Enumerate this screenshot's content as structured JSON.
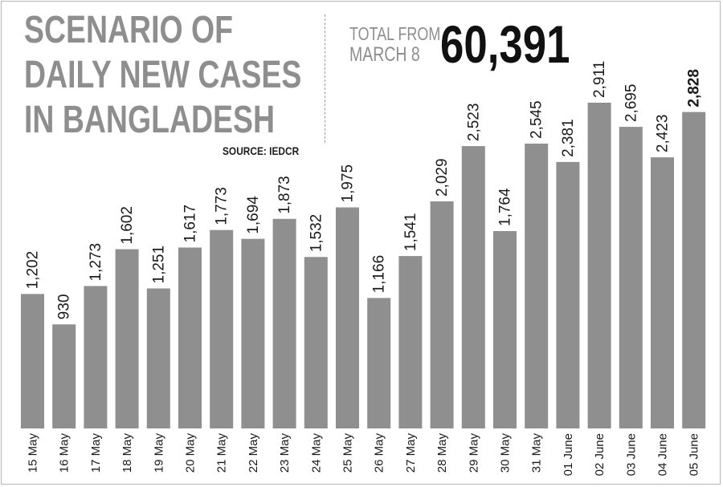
{
  "header": {
    "title_lines": [
      "SCENARIO OF",
      "DAILY NEW CASES",
      "IN BANGLADESH"
    ],
    "source": "SOURCE: IEDCR",
    "total_label_lines": [
      "TOTAL FROM",
      "MARCH 8"
    ],
    "total_value": "60,391"
  },
  "colors": {
    "bar": "#8f8f8f",
    "title": "#8e8e8e",
    "text": "#1a1a1a"
  },
  "chart_data": {
    "type": "bar",
    "title": "SCENARIO OF DAILY NEW CASES IN BANGLADESH",
    "categories": [
      "15 May",
      "16 May",
      "17 May",
      "18 May",
      "19 May",
      "20 May",
      "21 May",
      "22 May",
      "23 May",
      "24 May",
      "25 May",
      "26 May",
      "27 May",
      "28 May",
      "29 May",
      "30 May",
      "31 May",
      "01 June",
      "02 June",
      "03 June",
      "04 June",
      "05 June"
    ],
    "values": [
      1202,
      930,
      1273,
      1602,
      1251,
      1617,
      1773,
      1694,
      1873,
      1532,
      1975,
      1166,
      1541,
      2029,
      2523,
      1764,
      2545,
      2381,
      2911,
      2695,
      2423,
      2828
    ],
    "value_labels": [
      "1,202",
      "930",
      "1,273",
      "1,602",
      "1,251",
      "1,617",
      "1,773",
      "1,694",
      "1,873",
      "1,532",
      "1,975",
      "1,166",
      "1,541",
      "2,029",
      "2,523",
      "1,764",
      "2,545",
      "2,381",
      "2,911",
      "2,695",
      "2,423",
      "2,828"
    ],
    "highlighted_index": 21,
    "ylim": [
      0,
      2911
    ],
    "grid": false,
    "legend": "none"
  }
}
